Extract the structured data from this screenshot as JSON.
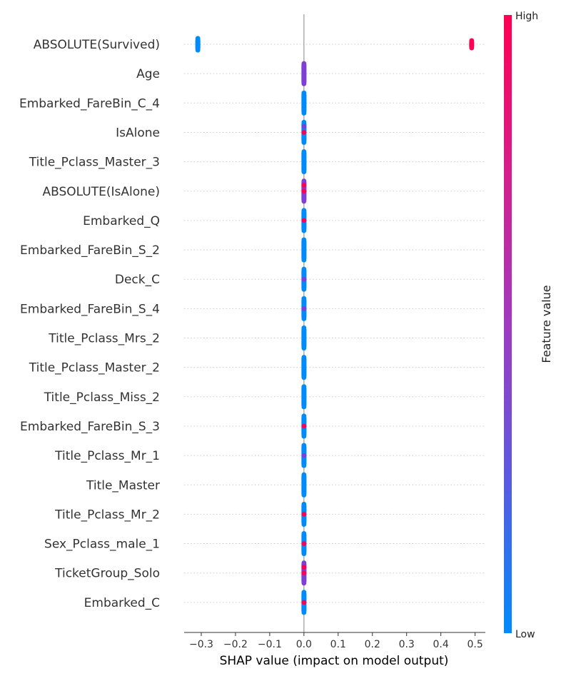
{
  "chart_data": {
    "type": "scatter",
    "subtype": "shap-beeswarm",
    "title": "",
    "xlabel": "SHAP value (impact on model output)",
    "ylabel": "",
    "xlim": [
      -0.35,
      0.53
    ],
    "x_ticks": [
      -0.3,
      -0.2,
      -0.1,
      0.0,
      0.1,
      0.2,
      0.3,
      0.4,
      0.5
    ],
    "x_tick_labels": [
      "−0.3",
      "−0.2",
      "−0.1",
      "0.0",
      "0.1",
      "0.2",
      "0.3",
      "0.4",
      "0.5"
    ],
    "grid": "dotted horizontal per feature",
    "zero_line": 0.0,
    "colors": {
      "low": "#008bfb",
      "mid": "#7f3fd6",
      "high": "#ff0052"
    },
    "colorbar": {
      "label": "Feature value",
      "high_label": "High",
      "low_label": "Low",
      "gradient": [
        "#008bfb",
        "#5a5ae0",
        "#a03ac0",
        "#d61e8a",
        "#ff0052"
      ]
    },
    "features": [
      {
        "name": "ABSOLUTE(Survived)",
        "clusters": [
          {
            "x": -0.31,
            "spread": 0.6,
            "color": "low"
          },
          {
            "x": 0.49,
            "spread": 0.4,
            "color": "high"
          }
        ]
      },
      {
        "name": "Age",
        "clusters": [
          {
            "x": 0.0,
            "spread": 1.0,
            "color": "mid"
          }
        ]
      },
      {
        "name": "Embarked_FareBin_C_4",
        "clusters": [
          {
            "x": 0.0,
            "spread": 1.0,
            "color": "low"
          }
        ]
      },
      {
        "name": "IsAlone",
        "clusters": [
          {
            "x": 0.0,
            "spread": 1.0,
            "color": "low",
            "accents": [
              "high",
              "mid"
            ]
          }
        ]
      },
      {
        "name": "Title_Pclass_Master_3",
        "clusters": [
          {
            "x": 0.0,
            "spread": 1.0,
            "color": "low"
          }
        ]
      },
      {
        "name": "ABSOLUTE(IsAlone)",
        "clusters": [
          {
            "x": 0.0,
            "spread": 1.0,
            "color": "mid",
            "accents": [
              "high",
              "high"
            ]
          }
        ]
      },
      {
        "name": "Embarked_Q",
        "clusters": [
          {
            "x": 0.0,
            "spread": 1.0,
            "color": "low",
            "accents": [
              "high"
            ]
          }
        ]
      },
      {
        "name": "Embarked_FareBin_S_2",
        "clusters": [
          {
            "x": 0.0,
            "spread": 1.0,
            "color": "low"
          }
        ]
      },
      {
        "name": "Deck_C",
        "clusters": [
          {
            "x": 0.0,
            "spread": 1.0,
            "color": "low",
            "accents": [
              "mid"
            ]
          }
        ]
      },
      {
        "name": "Embarked_FareBin_S_4",
        "clusters": [
          {
            "x": 0.0,
            "spread": 1.0,
            "color": "low",
            "accents": [
              "mid"
            ]
          }
        ]
      },
      {
        "name": "Title_Pclass_Mrs_2",
        "clusters": [
          {
            "x": 0.0,
            "spread": 1.0,
            "color": "low"
          }
        ]
      },
      {
        "name": "Title_Pclass_Master_2",
        "clusters": [
          {
            "x": 0.0,
            "spread": 1.0,
            "color": "low"
          }
        ]
      },
      {
        "name": "Title_Pclass_Miss_2",
        "clusters": [
          {
            "x": 0.0,
            "spread": 1.0,
            "color": "low"
          }
        ]
      },
      {
        "name": "Embarked_FareBin_S_3",
        "clusters": [
          {
            "x": 0.0,
            "spread": 1.0,
            "color": "low",
            "accents": [
              "high"
            ]
          }
        ]
      },
      {
        "name": "Title_Pclass_Mr_1",
        "clusters": [
          {
            "x": 0.0,
            "spread": 1.0,
            "color": "low",
            "accents": [
              "mid"
            ]
          }
        ]
      },
      {
        "name": "Title_Master",
        "clusters": [
          {
            "x": 0.0,
            "spread": 1.0,
            "color": "low"
          }
        ]
      },
      {
        "name": "Title_Pclass_Mr_2",
        "clusters": [
          {
            "x": 0.0,
            "spread": 1.0,
            "color": "low",
            "accents": [
              "high"
            ]
          }
        ]
      },
      {
        "name": "Sex_Pclass_male_1",
        "clusters": [
          {
            "x": 0.0,
            "spread": 1.0,
            "color": "low",
            "accents": [
              "high"
            ]
          }
        ]
      },
      {
        "name": "TicketGroup_Solo",
        "clusters": [
          {
            "x": 0.0,
            "spread": 1.0,
            "color": "mid",
            "accents": [
              "high",
              "high"
            ]
          }
        ]
      },
      {
        "name": "Embarked_C",
        "clusters": [
          {
            "x": 0.0,
            "spread": 1.0,
            "color": "low",
            "accents": [
              "high"
            ]
          }
        ]
      }
    ]
  }
}
